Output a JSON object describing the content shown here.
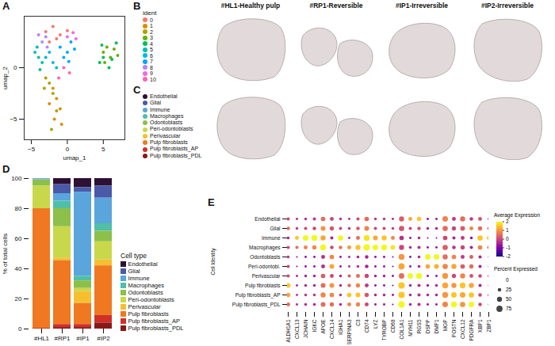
{
  "chart_data": [
    {
      "label": "A",
      "type": "scatter",
      "x_label": "umap_1",
      "y_label": "umap_2",
      "xlim": [
        -6,
        8
      ],
      "xticks": [
        -5,
        0,
        5
      ],
      "ylim": [
        -7,
        5
      ],
      "yticks": [
        -5,
        0
      ],
      "series": [
        {
          "color": "#F8766D",
          "x": [
            -3,
            -2,
            -1,
            -2.5,
            -1.5,
            0
          ],
          "y": [
            3.5,
            4,
            3.2,
            2.5,
            2.8,
            3.6
          ]
        },
        {
          "color": "#DB8E00",
          "x": [
            -2,
            -1.5,
            -1,
            -2.5,
            -1.8,
            -0.8
          ],
          "y": [
            -2,
            -3,
            -4,
            -3.5,
            -5,
            -5.5
          ]
        },
        {
          "color": "#AEA200",
          "x": [
            -3,
            -2.5,
            -2,
            -3.2,
            -1.5,
            -2.2
          ],
          "y": [
            -1,
            -1.5,
            -2.5,
            -2,
            -4.2,
            -6
          ]
        },
        {
          "color": "#64B200",
          "x": [
            5,
            5.5,
            6,
            6.5,
            5.2,
            7
          ],
          "y": [
            1.5,
            2,
            1,
            1.8,
            0.5,
            1.2
          ]
        },
        {
          "color": "#00BD5C",
          "x": [
            4.5,
            5,
            5.8,
            6.2,
            4.8,
            6.8
          ],
          "y": [
            0.5,
            1,
            0,
            0.8,
            2.2,
            2.4
          ]
        },
        {
          "color": "#00C1A7",
          "x": [
            -4,
            -4.5,
            -3.5,
            -4.2,
            -3.8
          ],
          "y": [
            1,
            1.5,
            0.5,
            2,
            -0.2
          ]
        },
        {
          "color": "#00BADE",
          "x": [
            -3,
            -2,
            -2.5,
            -1.5
          ],
          "y": [
            1,
            0.5,
            1.5,
            0
          ]
        },
        {
          "color": "#00A6FF",
          "x": [
            -1,
            0,
            0.5,
            -0.5,
            1,
            0.2
          ],
          "y": [
            2,
            1.5,
            2.5,
            1,
            1.8,
            0.6
          ]
        },
        {
          "color": "#B385FF",
          "x": [
            -3.5,
            -3,
            -4,
            -2.8
          ],
          "y": [
            2.5,
            3,
            3.2,
            2
          ]
        },
        {
          "color": "#EF67EB",
          "x": [
            0,
            0.8,
            1.2
          ],
          "y": [
            3,
            3.4,
            2.8
          ]
        },
        {
          "color": "#FF63B6",
          "x": [
            -0.5,
            0.3,
            -1.2
          ],
          "y": [
            0,
            -0.5,
            -1
          ]
        }
      ]
    },
    {
      "label": "B",
      "type": "image",
      "titles": [
        "#HL1-Healthy pulp",
        "#RP1-Reversible",
        "#IP1-Irreversible",
        "#IP2-Irreversible"
      ],
      "legend_title": "ident",
      "legend_items": [
        {
          "name": "0",
          "color": "#F8766D"
        },
        {
          "name": "1",
          "color": "#DB8E00"
        },
        {
          "name": "2",
          "color": "#AEA200"
        },
        {
          "name": "3",
          "color": "#64B200"
        },
        {
          "name": "4",
          "color": "#00BD5C"
        },
        {
          "name": "5",
          "color": "#00C1A7"
        },
        {
          "name": "6",
          "color": "#00BADE"
        },
        {
          "name": "7",
          "color": "#00A6FF"
        },
        {
          "name": "8",
          "color": "#B385FF"
        },
        {
          "name": "9",
          "color": "#EF67EB"
        },
        {
          "name": "10",
          "color": "#FF63B6"
        }
      ]
    },
    {
      "label": "C",
      "type": "image",
      "legend_items": [
        {
          "name": "Endothelial",
          "color": "#2d1033"
        },
        {
          "name": "Glial",
          "color": "#4a5aa8"
        },
        {
          "name": "Immune",
          "color": "#5aa5dc"
        },
        {
          "name": "Macrophages",
          "color": "#4fbfa8"
        },
        {
          "name": "Odontoblasts",
          "color": "#8cc04a"
        },
        {
          "name": "Peri-odontoblasts",
          "color": "#c8d84a"
        },
        {
          "name": "Perivascular",
          "color": "#f5c030"
        },
        {
          "name": "Pulp fibroblasts",
          "color": "#f07820"
        },
        {
          "name": "Pulp fibroblasts_AP",
          "color": "#d03028"
        },
        {
          "name": "Pulp fibroblasts_PDL",
          "color": "#8a1818"
        }
      ]
    },
    {
      "label": "D",
      "type": "bar",
      "stacked": true,
      "legend": "right",
      "legend_title": "Cell type",
      "y_label": "% of total cells",
      "ylim": [
        0,
        100
      ],
      "yticks": [
        0,
        20,
        40,
        60,
        80,
        100
      ],
      "categories": [
        "#HL1",
        "#RP1",
        "#IP1",
        "#IP2"
      ],
      "series": [
        {
          "name": "Endothelial",
          "color": "#2d1033",
          "values": [
            0.1,
            4,
            6,
            5
          ]
        },
        {
          "name": "Glial",
          "color": "#4a5aa8",
          "values": [
            0.2,
            6,
            3,
            8
          ]
        },
        {
          "name": "Immune",
          "color": "#5aa5dc",
          "values": [
            0.4,
            5,
            56,
            17
          ]
        },
        {
          "name": "Macrophages",
          "color": "#4fbfa8",
          "values": [
            0.3,
            5,
            3,
            5
          ]
        },
        {
          "name": "Odontoblasts",
          "color": "#8cc04a",
          "values": [
            4,
            12,
            5,
            7
          ]
        },
        {
          "name": "Peri-odontoblasts",
          "color": "#c8d84a",
          "values": [
            15,
            21,
            2,
            12
          ]
        },
        {
          "name": "Perivascular",
          "color": "#f5c030",
          "values": [
            0,
            1.5,
            8,
            4
          ]
        },
        {
          "name": "Pulp fibroblasts",
          "color": "#f07820",
          "values": [
            79.5,
            42.5,
            14,
            33
          ]
        },
        {
          "name": "Pulp fibroblasts_AP",
          "color": "#d03028",
          "values": [
            0.5,
            2,
            2,
            5
          ]
        },
        {
          "name": "Pulp fibroblasts_PDL",
          "color": "#8a1818",
          "values": [
            0,
            1,
            1,
            4
          ]
        }
      ]
    },
    {
      "label": "E",
      "type": "dot",
      "y_label": "Cell Identity",
      "categories": [
        "ALDH1A1",
        "CXCL13",
        "JCHAIN",
        "IGKC",
        "APOE",
        "CXCL14",
        "IGHA1",
        "SERPINA3",
        "C3",
        "CD74",
        "LYZ",
        "TYROBP",
        "CD68",
        "COL1A1",
        "MYH11",
        "RGS5",
        "DSPP",
        "DMP1",
        "MGP",
        "POSTN",
        "CXCL12",
        "PDGFRA",
        "XBP1",
        "ZBP1"
      ],
      "rows": [
        "Endothelial",
        "Glial",
        "Immune",
        "Macrophages",
        "Odontoblasts",
        "Peri-odontobl.",
        "Perivascular",
        "Pulp fibroblasts",
        "Pulp fibroblasts_AP",
        "Pulp fibroblasts_PDL"
      ],
      "percent_expressed": [
        [
          20,
          10,
          15,
          20,
          40,
          30,
          15,
          10,
          20,
          40,
          15,
          15,
          10,
          50,
          30,
          35,
          10,
          10,
          60,
          30,
          50,
          25,
          30,
          10
        ],
        [
          25,
          15,
          20,
          25,
          45,
          35,
          20,
          15,
          25,
          45,
          20,
          20,
          15,
          55,
          20,
          25,
          15,
          15,
          55,
          35,
          45,
          30,
          35,
          15
        ],
        [
          15,
          30,
          60,
          70,
          50,
          20,
          55,
          10,
          30,
          70,
          45,
          50,
          30,
          40,
          10,
          15,
          5,
          5,
          40,
          20,
          30,
          15,
          55,
          30
        ],
        [
          20,
          20,
          30,
          35,
          70,
          25,
          25,
          30,
          50,
          80,
          60,
          65,
          45,
          50,
          15,
          20,
          10,
          10,
          55,
          25,
          35,
          20,
          40,
          20
        ],
        [
          15,
          5,
          10,
          10,
          30,
          40,
          10,
          10,
          15,
          25,
          10,
          10,
          5,
          70,
          10,
          15,
          60,
          60,
          50,
          40,
          30,
          30,
          20,
          5
        ],
        [
          20,
          5,
          10,
          10,
          30,
          45,
          10,
          10,
          15,
          25,
          10,
          10,
          5,
          75,
          10,
          15,
          40,
          45,
          55,
          50,
          40,
          35,
          20,
          5
        ],
        [
          20,
          10,
          15,
          15,
          40,
          30,
          15,
          20,
          30,
          35,
          15,
          15,
          10,
          60,
          60,
          65,
          10,
          10,
          65,
          35,
          50,
          30,
          25,
          10
        ],
        [
          45,
          10,
          15,
          15,
          45,
          45,
          15,
          25,
          35,
          30,
          10,
          10,
          5,
          80,
          15,
          20,
          15,
          15,
          70,
          50,
          65,
          50,
          20,
          5
        ],
        [
          40,
          10,
          15,
          15,
          50,
          40,
          15,
          40,
          45,
          35,
          15,
          15,
          10,
          80,
          15,
          20,
          15,
          15,
          65,
          60,
          60,
          55,
          25,
          10
        ],
        [
          30,
          10,
          15,
          15,
          45,
          35,
          15,
          30,
          35,
          30,
          10,
          10,
          5,
          85,
          15,
          20,
          10,
          10,
          60,
          70,
          55,
          60,
          25,
          5
        ]
      ],
      "average_expression": [
        [
          0,
          -0.5,
          -0.3,
          -0.2,
          0.5,
          0,
          -0.3,
          -0.5,
          0,
          0.5,
          -0.2,
          -0.2,
          -0.5,
          0.3,
          1.2,
          1.5,
          -0.8,
          -0.8,
          0.8,
          -0.2,
          0.5,
          -0.2,
          0.2,
          -0.5
        ],
        [
          0.5,
          -0.2,
          0,
          0,
          1,
          0.2,
          0,
          -0.3,
          0.2,
          0.8,
          0,
          0,
          -0.2,
          0.2,
          0,
          0.2,
          -0.5,
          -0.5,
          0.5,
          0,
          0.3,
          0.8,
          0.5,
          0
        ],
        [
          -0.5,
          1.5,
          2,
          2,
          1.2,
          -0.5,
          2,
          -0.5,
          0.5,
          1.8,
          1.2,
          1.5,
          0.8,
          -0.3,
          -0.8,
          -0.5,
          -1,
          -1,
          0,
          -0.5,
          -0.2,
          -0.8,
          1.5,
          1.5
        ],
        [
          0,
          0.5,
          0.8,
          0.8,
          2,
          0,
          0.6,
          1,
          1.5,
          2,
          2,
          2,
          1.8,
          0,
          -0.5,
          -0.3,
          -0.8,
          -0.8,
          0.3,
          -0.3,
          0,
          -0.5,
          0.8,
          0.5
        ],
        [
          -0.3,
          -1,
          -0.8,
          -0.8,
          -0.3,
          0.8,
          -0.8,
          -0.5,
          -0.5,
          -0.5,
          -0.8,
          -0.8,
          -1,
          1,
          -0.8,
          -0.5,
          2,
          2,
          0.5,
          0.8,
          -0.2,
          0.3,
          -0.5,
          -1
        ],
        [
          0,
          -1,
          -0.8,
          -0.8,
          -0.3,
          1.2,
          -0.8,
          -0.5,
          -0.3,
          -0.5,
          -0.8,
          -0.8,
          -1,
          1.2,
          -0.8,
          -0.5,
          1.2,
          1.3,
          0.8,
          1.2,
          0.3,
          0.5,
          -0.5,
          -1
        ],
        [
          0,
          -0.5,
          -0.5,
          -0.5,
          0.3,
          0,
          -0.5,
          0.3,
          0.5,
          0,
          -0.5,
          -0.5,
          -0.8,
          0.5,
          2,
          2,
          -0.8,
          -0.8,
          1,
          0,
          0.8,
          0.2,
          0,
          -0.5
        ],
        [
          1.5,
          -0.5,
          -0.5,
          -0.5,
          0.5,
          1,
          -0.5,
          0.5,
          0.8,
          -0.2,
          -0.8,
          -0.8,
          -1,
          1.5,
          -0.5,
          -0.3,
          -0.5,
          -0.5,
          1.2,
          1,
          1.5,
          1.2,
          -0.5,
          -1
        ],
        [
          1.2,
          -0.3,
          -0.3,
          -0.3,
          0.8,
          0.8,
          -0.3,
          1.5,
          1.5,
          0.2,
          -0.5,
          -0.5,
          -0.8,
          1.5,
          -0.5,
          -0.3,
          -0.5,
          -0.5,
          1,
          1.5,
          1.2,
          1.5,
          0,
          -0.5
        ],
        [
          0.5,
          -0.5,
          -0.5,
          -0.5,
          0.5,
          0.5,
          -0.5,
          0.8,
          0.8,
          0,
          -0.8,
          -0.8,
          -1,
          2,
          -0.5,
          -0.3,
          -0.8,
          -0.8,
          0.8,
          2,
          1,
          2,
          0,
          -1
        ]
      ],
      "color_legend_title": "Average Expression",
      "colorbar_range": [
        -2,
        2
      ],
      "colorbar_ticks": [
        2,
        1,
        0,
        -1,
        -2
      ],
      "size_legend_title": "Percent Expressed",
      "size_lim": [
        0,
        100
      ],
      "size_ticks": [
        0,
        25,
        50,
        75
      ]
    }
  ]
}
